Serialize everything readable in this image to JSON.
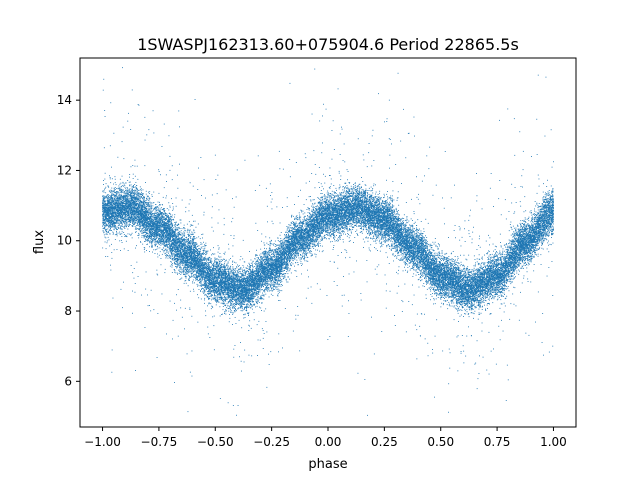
{
  "chart_data": {
    "type": "scatter",
    "title": "1SWASPJ162313.60+075904.6 Period 22865.5s",
    "xlabel": "phase",
    "ylabel": "flux",
    "xlim": [
      -1.1,
      1.1
    ],
    "ylim": [
      4.7,
      15.2
    ],
    "x_ticks": [
      -1.0,
      -0.75,
      -0.5,
      -0.25,
      0.0,
      0.25,
      0.5,
      0.75,
      1.0
    ],
    "x_tick_labels": [
      "−1.00",
      "−0.75",
      "−0.50",
      "−0.25",
      "0.00",
      "0.25",
      "0.50",
      "0.75",
      "1.00"
    ],
    "y_ticks": [
      6,
      8,
      10,
      12,
      14
    ],
    "y_tick_labels": [
      "6",
      "8",
      "10",
      "12",
      "14"
    ],
    "grid": false,
    "legend": "none",
    "marker_color": "#1f77b4",
    "curve": {
      "description_values": "mean flux vs phase sampled every 0.125",
      "phase": [
        -1.0,
        -0.875,
        -0.75,
        -0.625,
        -0.5,
        -0.375,
        -0.25,
        -0.125,
        0.0,
        0.125,
        0.25,
        0.375,
        0.5,
        0.625,
        0.75,
        0.875,
        1.0
      ],
      "flux": [
        10.8,
        10.95,
        10.4,
        9.6,
        8.85,
        8.6,
        9.2,
        10.05,
        10.7,
        10.95,
        10.6,
        9.8,
        9.0,
        8.6,
        9.0,
        9.95,
        10.8
      ]
    },
    "scatter_width_flux": 0.5,
    "approx_points": 30000
  }
}
